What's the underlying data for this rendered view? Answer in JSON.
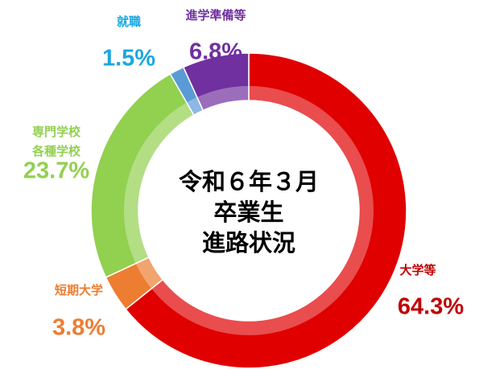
{
  "chart_data": {
    "type": "donut",
    "title": [
      "令和６年３月",
      "卒業生",
      "進路状況"
    ],
    "categories": [
      "大学等",
      "短期大学",
      "専門学校\n各種学校",
      "就職",
      "進学準備等"
    ],
    "values": [
      64.3,
      3.8,
      23.7,
      1.5,
      6.8
    ],
    "value_labels": [
      "64.3%",
      "3.8%",
      "23.7%",
      "1.5%",
      "6.8%"
    ],
    "colors": [
      "#e00000",
      "#ed7d31",
      "#92d050",
      "#5b9bd5",
      "#7030a0"
    ],
    "label_colors": [
      "#c00000",
      "#ed7d31",
      "#92d050",
      "#1aa7e0",
      "#7030a0"
    ]
  }
}
